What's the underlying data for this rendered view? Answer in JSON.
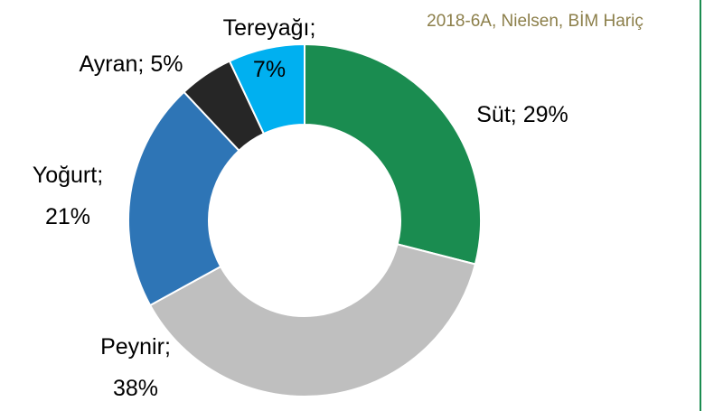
{
  "chart_data": {
    "type": "donut",
    "subtitle": "2018-6A, Nielsen, BİM Hariç",
    "categories": [
      "Süt",
      "Peynir",
      "Yoğurt",
      "Ayran",
      "Tereyağı"
    ],
    "values": [
      29,
      38,
      21,
      5,
      7
    ],
    "value_labels": [
      "29%",
      "38%",
      "21%",
      "5%",
      "7%"
    ],
    "colors": [
      "#1a8c50",
      "#bfbfbf",
      "#2e75b6",
      "#262626",
      "#00b0f0"
    ]
  }
}
